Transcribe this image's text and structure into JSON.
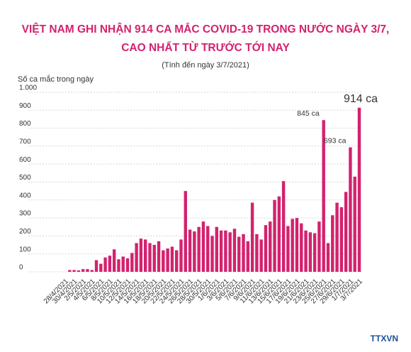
{
  "chart_data": {
    "type": "bar",
    "title": [
      "VIỆT NAM GHI NHẬN 914 CA MẮC COVID-19 TRONG NƯỚC NGÀY 3/7,",
      "CAO NHẤT TỪ TRƯỚC TỚI NAY"
    ],
    "subtitle": "(Tính đến ngày 3/7/2021)",
    "y_label": "Số ca mắc trong ngày",
    "source": "TTXVN",
    "categories": [
      "28/4/2021",
      null,
      "30/4/2021",
      null,
      "2/5/2021",
      null,
      "4/5/2021",
      null,
      "6/5/2021",
      null,
      "8/5/2021",
      null,
      "10/5/2021",
      null,
      "12/5/2021",
      null,
      "14/5/2021",
      null,
      "16/5/2021",
      null,
      "18/5/2021",
      null,
      "20/5/2021",
      null,
      "22/5/2021",
      null,
      "24/5/2021",
      null,
      "26/5/2021",
      null,
      "28/5/2021",
      null,
      "30/5/2021",
      null,
      "1/6/2021",
      null,
      "3/6/2021",
      null,
      "5/6/2021",
      null,
      "7/6/2021",
      null,
      "9/6/2021",
      null,
      "11/6/2021",
      null,
      "13/6/2021",
      null,
      "15/6/2021",
      null,
      "17/6/2021",
      null,
      "19/6/2021",
      null,
      "21/6/2021",
      null,
      "23/6/2021",
      null,
      "25/6/2021",
      null,
      "27/6/2021",
      null,
      "29/6/2021",
      null,
      "1/7/2021",
      null,
      "3/7/2021"
    ],
    "values": [
      0,
      10,
      10,
      8,
      15,
      15,
      10,
      65,
      45,
      80,
      90,
      125,
      70,
      85,
      75,
      105,
      160,
      185,
      180,
      160,
      150,
      170,
      120,
      130,
      140,
      120,
      180,
      450,
      235,
      225,
      250,
      280,
      255,
      200,
      250,
      230,
      230,
      220,
      240,
      195,
      210,
      170,
      385,
      210,
      180,
      260,
      280,
      400,
      420,
      505,
      255,
      295,
      300,
      270,
      230,
      220,
      215,
      280,
      845,
      160,
      315,
      385,
      360,
      445,
      693,
      530,
      914
    ],
    "value_labels": [
      null,
      null,
      null,
      null,
      null,
      null,
      null,
      null,
      null,
      null,
      null,
      null,
      null,
      null,
      null,
      null,
      null,
      null,
      null,
      null,
      null,
      null,
      null,
      null,
      null,
      null,
      null,
      null,
      null,
      null,
      null,
      null,
      null,
      null,
      null,
      null,
      null,
      null,
      null,
      null,
      null,
      null,
      null,
      null,
      null,
      null,
      null,
      null,
      null,
      null,
      null,
      null,
      null,
      null,
      null,
      null,
      null,
      null,
      "845 ca",
      null,
      null,
      null,
      null,
      null,
      "693 ca",
      null,
      "914 ca"
    ],
    "color": "#d3226e",
    "ylim": [
      0,
      1000
    ],
    "yticks": [
      0,
      100,
      200,
      300,
      400,
      500,
      600,
      700,
      800,
      900,
      {
        "value": 1000,
        "label": "1.000"
      }
    ],
    "grid": true
  }
}
